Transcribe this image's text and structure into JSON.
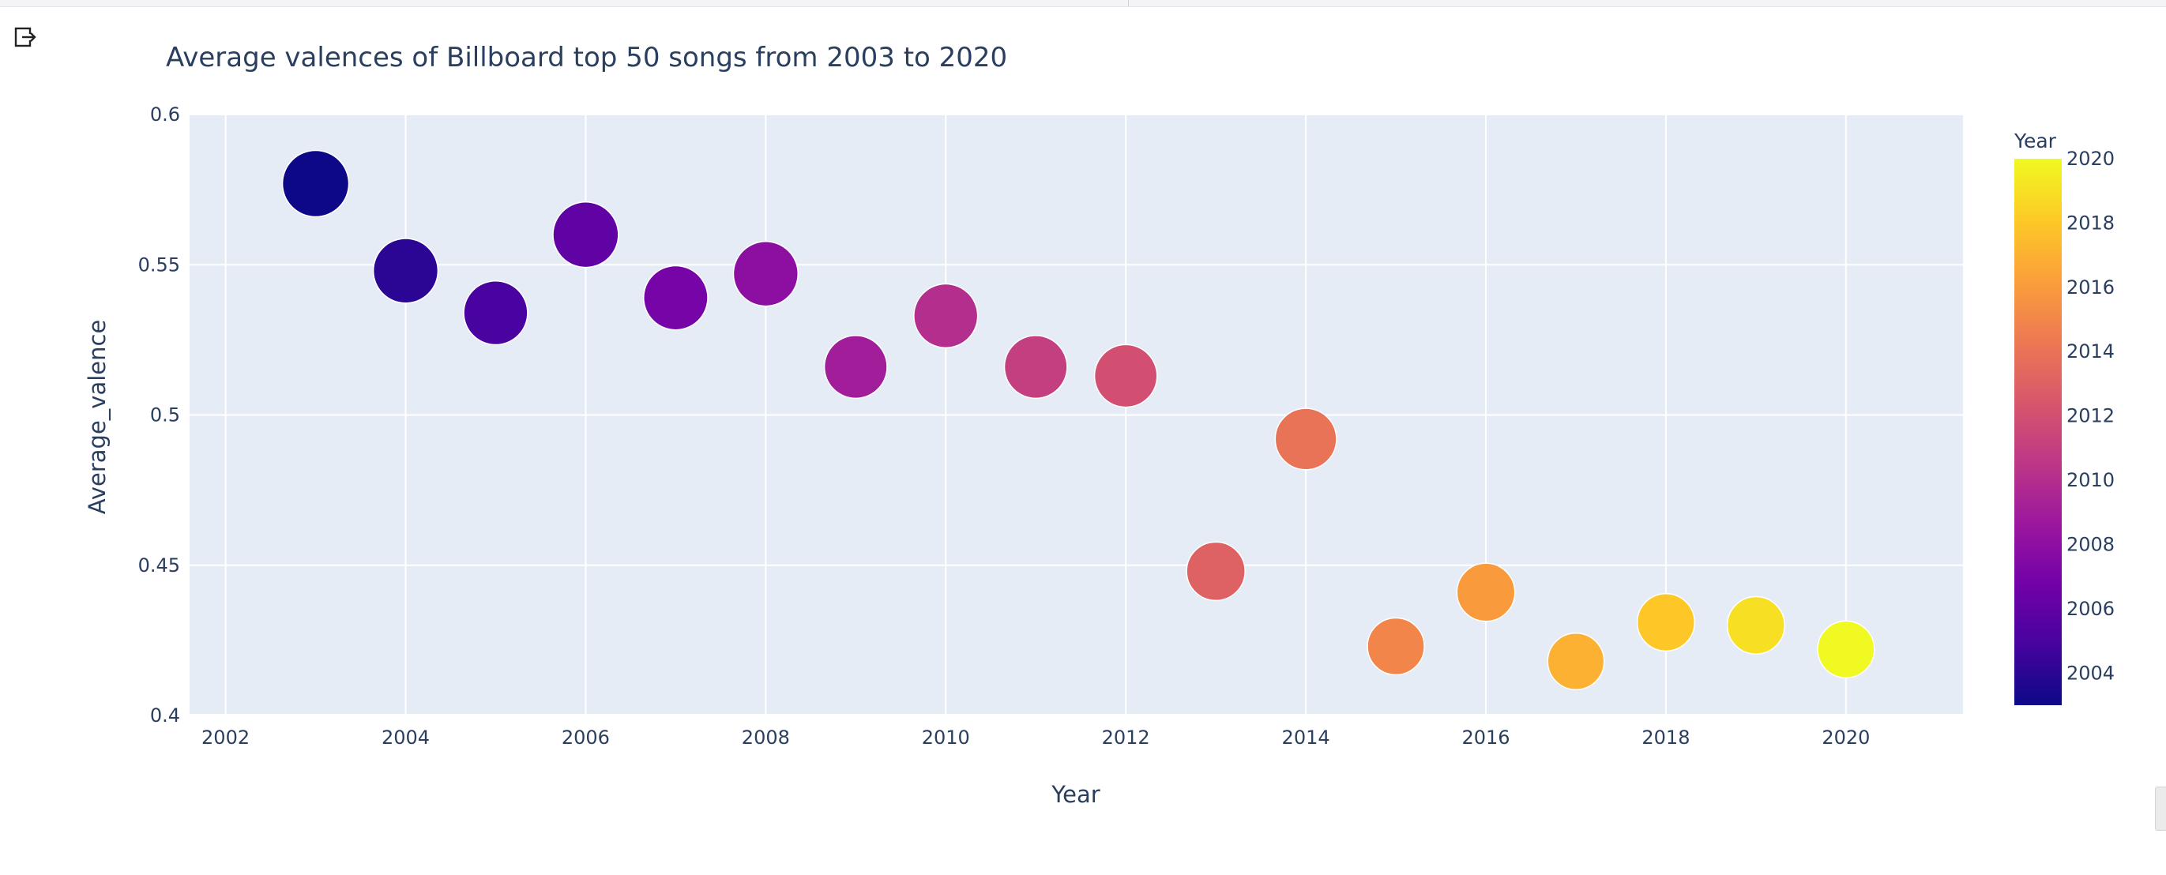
{
  "toolbar": {
    "export_icon": "export-icon"
  },
  "colors": {
    "plot_bg": "#e5ecf6",
    "grid": "#ffffff",
    "text": "#2a3f5f",
    "colorscale": [
      "#0d0887",
      "#46039f",
      "#7201a8",
      "#9c179e",
      "#bd3786",
      "#d8576b",
      "#ed7953",
      "#fb9f3a",
      "#fdca26",
      "#f0f921"
    ]
  },
  "chart_data": {
    "type": "scatter",
    "title": "Average valences of Billboard top 50 songs from 2003 to 2020",
    "xlabel": "Year",
    "ylabel": "Average_valence",
    "xlim": [
      2001.6,
      2021.3
    ],
    "ylim": [
      0.4,
      0.6
    ],
    "x_ticks": [
      2002,
      2004,
      2006,
      2008,
      2010,
      2012,
      2014,
      2016,
      2018,
      2020
    ],
    "y_ticks": [
      0.4,
      0.45,
      0.5,
      0.55,
      0.6
    ],
    "y_tick_labels": [
      "0.4",
      "0.45",
      "0.5",
      "0.55",
      "0.6"
    ],
    "grid": true,
    "marker_size_by": "Average_valence",
    "color_by": "Year",
    "colorbar": {
      "title": "Year",
      "range": [
        2003,
        2020
      ],
      "ticks": [
        2004,
        2006,
        2008,
        2010,
        2012,
        2014,
        2016,
        2018,
        2020
      ]
    },
    "points": [
      {
        "x": 2003,
        "y": 0.577
      },
      {
        "x": 2004,
        "y": 0.548
      },
      {
        "x": 2005,
        "y": 0.534
      },
      {
        "x": 2006,
        "y": 0.56
      },
      {
        "x": 2007,
        "y": 0.539
      },
      {
        "x": 2008,
        "y": 0.547
      },
      {
        "x": 2009,
        "y": 0.516
      },
      {
        "x": 2010,
        "y": 0.533
      },
      {
        "x": 2011,
        "y": 0.516
      },
      {
        "x": 2012,
        "y": 0.513
      },
      {
        "x": 2013,
        "y": 0.448
      },
      {
        "x": 2014,
        "y": 0.492
      },
      {
        "x": 2015,
        "y": 0.423
      },
      {
        "x": 2016,
        "y": 0.441
      },
      {
        "x": 2017,
        "y": 0.418
      },
      {
        "x": 2018,
        "y": 0.431
      },
      {
        "x": 2019,
        "y": 0.43
      },
      {
        "x": 2020,
        "y": 0.422
      }
    ]
  }
}
